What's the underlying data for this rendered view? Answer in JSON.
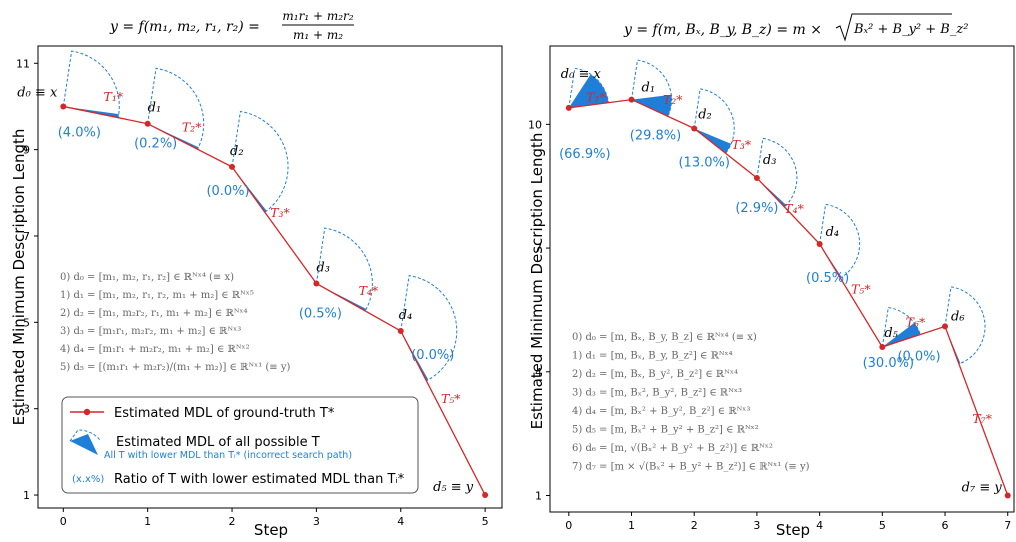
{
  "chart_data": [
    {
      "type": "line",
      "title": "y = f(m₁, m₂, r₁, r₂) = (m₁r₁ + m₂r₂) / (m₁ + m₂)",
      "title_lhs": "y = f(m₁, m₂, r₁, r₂) =",
      "title_num": "m₁r₁ + m₂r₂",
      "title_den": "m₁ + m₂",
      "xlabel": "Step",
      "ylabel": "Estimated Minimum Description Length",
      "xlim": [
        -0.3,
        5.2
      ],
      "ylim": [
        0.7,
        11.4
      ],
      "xticks": [
        0,
        1,
        2,
        3,
        4,
        5
      ],
      "yticks": [
        1,
        3,
        5,
        7,
        9,
        11
      ],
      "x": [
        0,
        1,
        2,
        3,
        4,
        5
      ],
      "y": [
        10.0,
        9.6,
        8.6,
        5.9,
        4.8,
        1.0
      ],
      "node_labels": [
        "d₀ ≡ x",
        "d₁",
        "d₂",
        "d₃",
        "d₄",
        "d₅ ≡ y"
      ],
      "edge_labels": [
        "T₁*",
        "T₂*",
        "T₃*",
        "T₄*",
        "T₅*"
      ],
      "ratios": [
        "(4.0%)",
        "(0.2%)",
        "(0.0%)",
        "(0.5%)",
        "(0.0%)"
      ],
      "ratio_fraction": [
        0.04,
        0.002,
        0.0,
        0.005,
        0.0
      ],
      "series_color": "#d62728",
      "wedge_color": "#1f7fd8",
      "steps": [
        "0) d₀ = [m₁, m₂, r₁, r₂] ∈ ℝᴺˣ⁴ (≡ x)",
        "1) d₁ = [m₁, m₂, r₁, r₂, m₁ + m₂] ∈ ℝᴺˣ⁵",
        "2) d₂ = [m₁, m₂r₂, r₁, m₁ + m₂] ∈ ℝᴺˣ⁴",
        "3) d₃ = [m₁r₁, m₂r₂, m₁ + m₂] ∈ ℝᴺˣ³",
        "4) d₄ = [m₁r₁ + m₂r₂, m₁ + m₂] ∈ ℝᴺˣ²",
        "5) d₅ = [(m₁r₁ + m₂r₂)/(m₁ + m₂)] ∈ ℝᴺˣ¹ (≡ y)"
      ],
      "legend": {
        "entry1": "Estimated MDL of ground-truth T*",
        "entry2": "Estimated MDL of all possible T",
        "entry2_sub": "All T with lower MDL than Tᵢ* (incorrect search path)",
        "entry3_marker": "(x.x%)",
        "entry3": "Ratio of T with lower estimated MDL than Tᵢ*"
      }
    },
    {
      "type": "line",
      "title": "y = f(m, Bₓ, B_y, B_z) = m × √(Bₓ² + B_y² + B_z²)",
      "title_lhs": "y = f(m, Bₓ, B_y, B_z) = m ×",
      "title_sqrt": "Bₓ² + B_y² + B_z²",
      "xlabel": "Step",
      "ylabel": "Estimated Minimum Description Length",
      "xlim": [
        -0.3,
        7.1
      ],
      "ylim": [
        0.6,
        11.9
      ],
      "xticks": [
        0,
        1,
        2,
        3,
        4,
        5,
        6,
        7
      ],
      "yticks": [
        1,
        4,
        7,
        10
      ],
      "x": [
        0,
        1,
        2,
        3,
        4,
        5,
        6,
        7
      ],
      "y": [
        10.4,
        10.6,
        9.9,
        8.7,
        7.1,
        4.6,
        5.1,
        1.0
      ],
      "node_labels": [
        "d₀ ≡ x",
        "d₁",
        "d₂",
        "d₃",
        "d₄",
        "d₅",
        "d₆",
        "d₇ ≡ y"
      ],
      "edge_labels": [
        "T₁*",
        "T₂*",
        "T₃*",
        "T₄*",
        "T₅*",
        "T₆*",
        "T₇*"
      ],
      "ratios": [
        "(66.9%)",
        "(29.8%)",
        "(13.0%)",
        "(2.9%)",
        "(0.5%)",
        "(30.0%)",
        "(0.0%)"
      ],
      "ratio_fraction": [
        0.669,
        0.298,
        0.13,
        0.029,
        0.005,
        0.3,
        0.0
      ],
      "series_color": "#d62728",
      "wedge_color": "#1f7fd8",
      "steps": [
        "0) d₀ = [m, Bₓ, B_y, B_z] ∈ ℝᴺˣ⁴ (≡ x)",
        "1) d₁ = [m, Bₓ, B_y, B_z²] ∈ ℝᴺˣ⁴",
        "2) d₂ = [m, Bₓ, B_y², B_z²] ∈ ℝᴺˣ⁴",
        "3) d₃ = [m, Bₓ², B_y², B_z²] ∈ ℝᴺˣ³",
        "4) d₄ = [m, Bₓ² + B_y², B_z²] ∈ ℝᴺˣ³",
        "5) d₅ = [m, Bₓ² + B_y² + B_z²] ∈ ℝᴺˣ²",
        "6) d₆ = [m, √(Bₓ² + B_y² + B_z²)] ∈ ℝᴺˣ²",
        "7) d₇ = [m × √(Bₓ² + B_y² + B_z²)] ∈ ℝᴺˣ¹ (≡ y)"
      ]
    }
  ]
}
